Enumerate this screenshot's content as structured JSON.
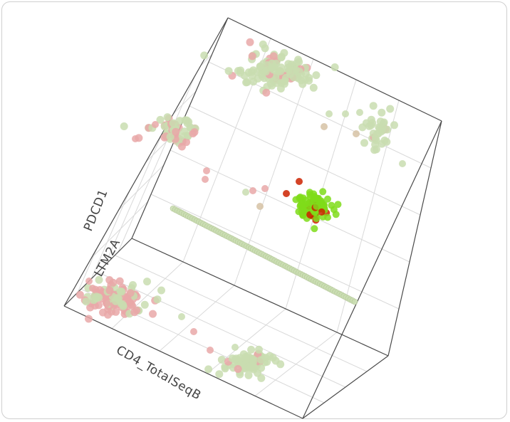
{
  "chart_data": {
    "type": "scatter",
    "projection": "3d",
    "title": "",
    "axes": {
      "x": "CD4_TotalSeqB",
      "y": "LTM2A",
      "z": "PDCD1"
    },
    "grid": true,
    "legend": "none",
    "colors": {
      "pink": "#e9a8a8",
      "sage": "#c9ddb0",
      "green": "#7fdc1a",
      "red": "#cc2200",
      "tan": "#d6c2a4",
      "box": "#4a4a4a",
      "grid": "#d9d9d9"
    },
    "clusters": [
      {
        "id": "bottom-left",
        "center": [
          160,
          420
        ],
        "n": 120,
        "spread": [
          42,
          20
        ],
        "tone": "pink-sage"
      },
      {
        "id": "bottom-right",
        "center": [
          350,
          510
        ],
        "n": 80,
        "spread": [
          30,
          14
        ],
        "tone": "sage"
      },
      {
        "id": "top",
        "center": [
          380,
          100
        ],
        "n": 130,
        "spread": [
          50,
          26
        ],
        "tone": "sage-pink"
      },
      {
        "id": "top-right",
        "center": [
          530,
          185
        ],
        "n": 35,
        "spread": [
          18,
          22
        ],
        "tone": "sage"
      },
      {
        "id": "left",
        "center": [
          245,
          185
        ],
        "n": 60,
        "spread": [
          32,
          16
        ],
        "tone": "pink-sage"
      },
      {
        "id": "center",
        "center": [
          438,
          290
        ],
        "n": 110,
        "spread": [
          24,
          18
        ],
        "tone": "green"
      }
    ],
    "strip": {
      "from": [
        243,
        293
      ],
      "to": [
        498,
        424
      ],
      "n": 85
    }
  }
}
